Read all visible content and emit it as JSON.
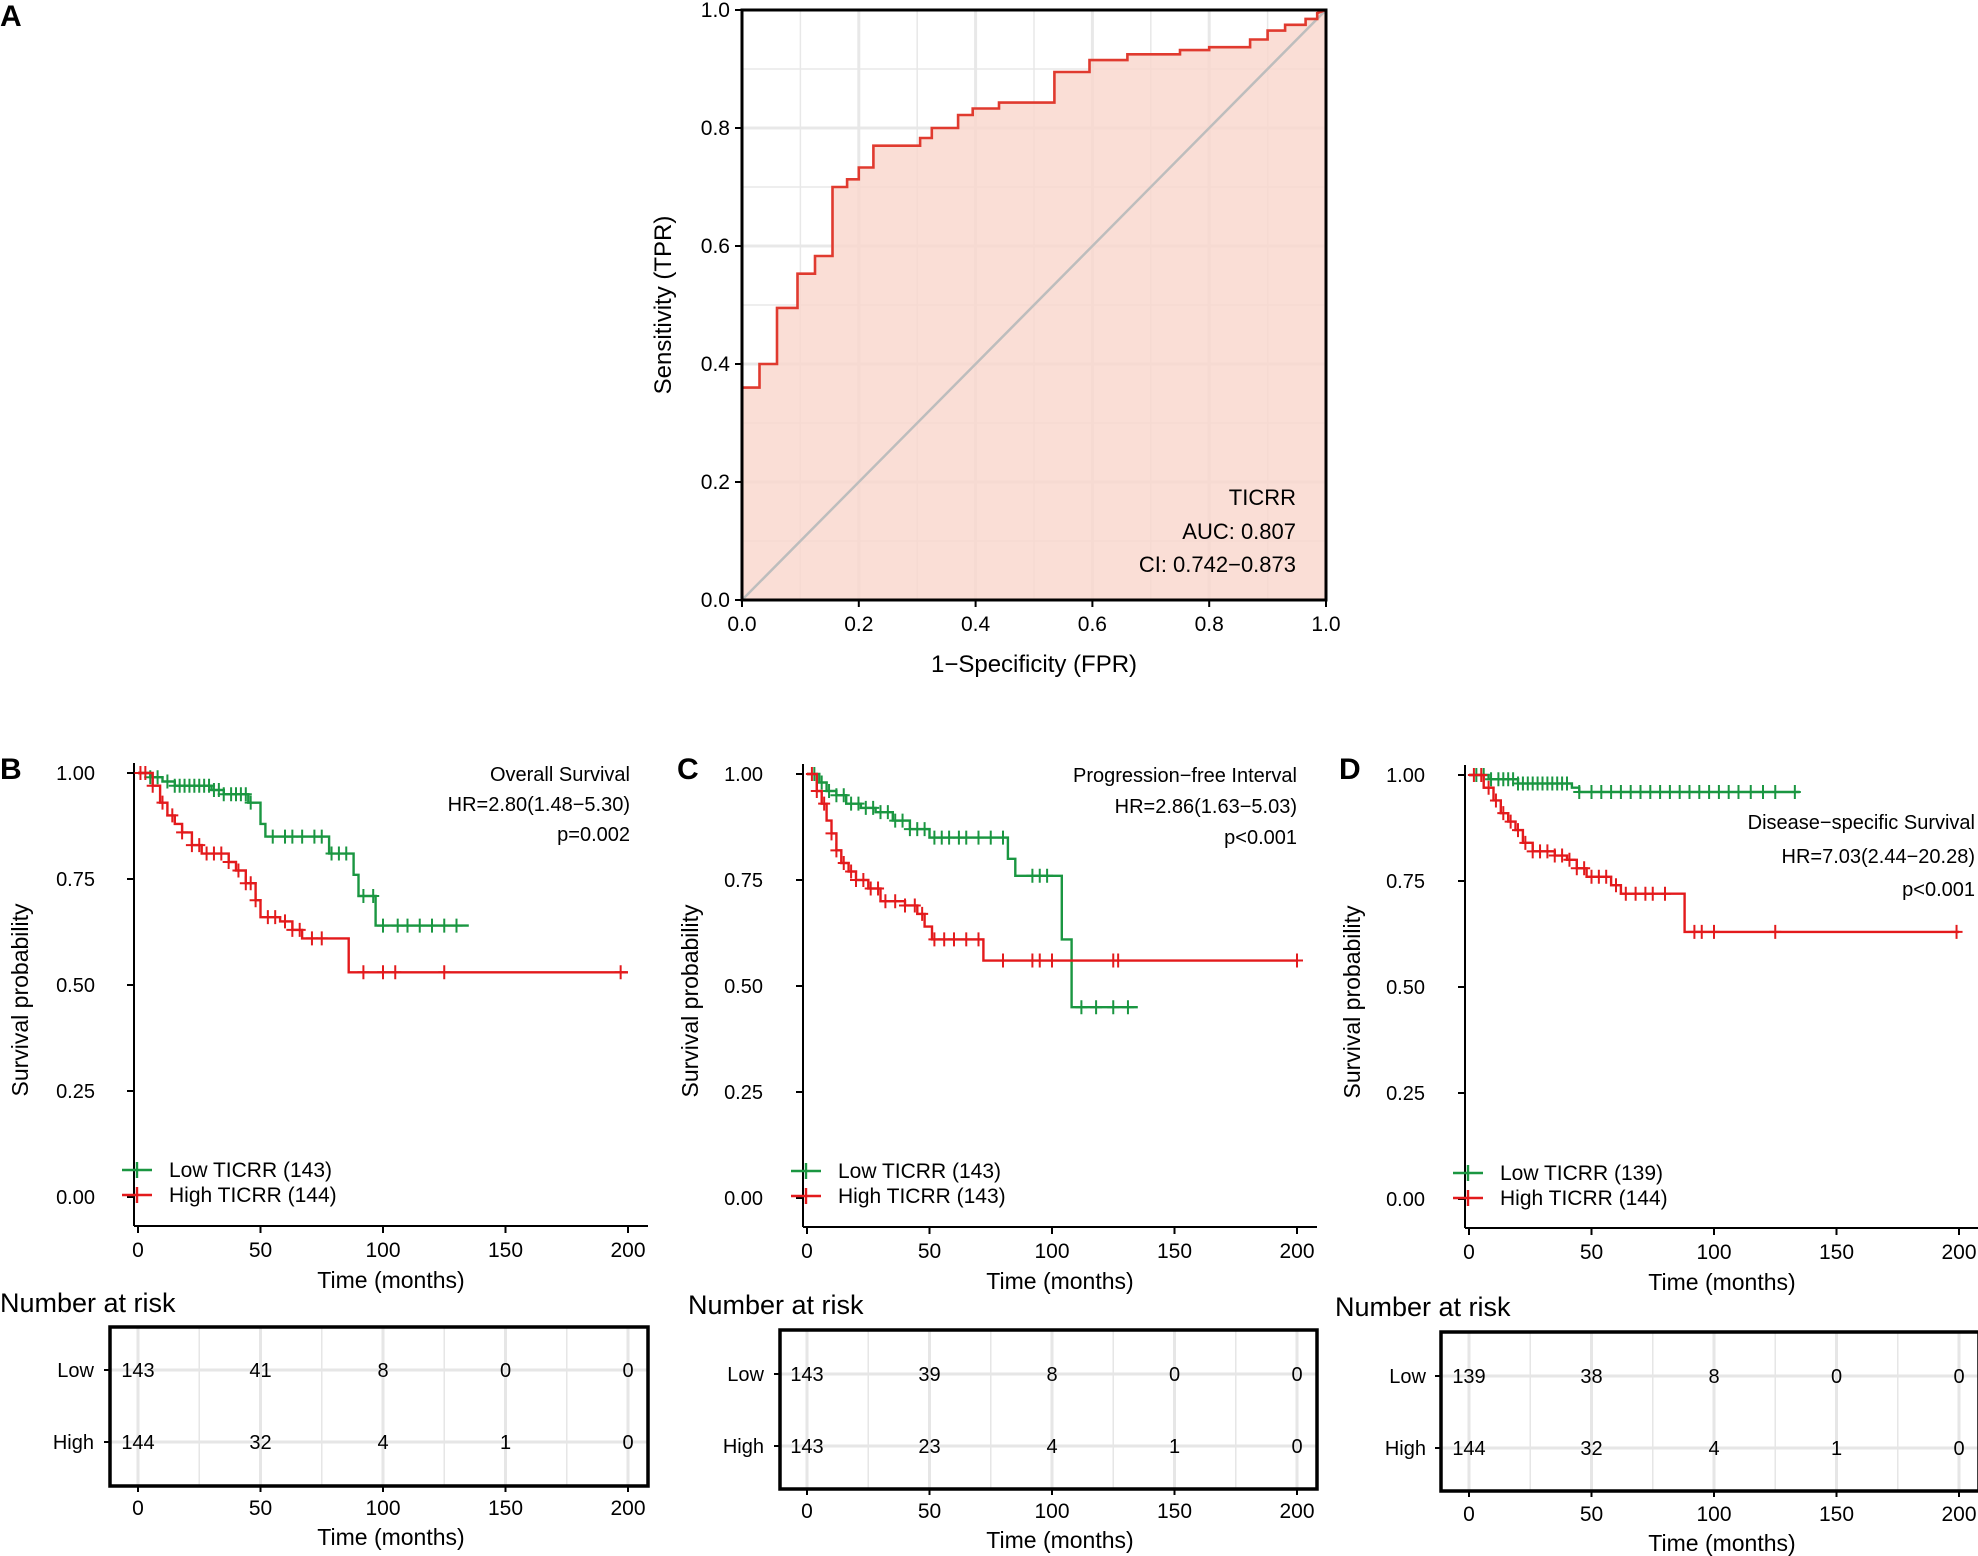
{
  "chart_data": [
    {
      "panel": "A",
      "type": "line",
      "subtype": "roc",
      "xlabel": "1−Specificity (FPR)",
      "ylabel": "Sensitivity (TPR)",
      "xlim": [
        0,
        1
      ],
      "ylim": [
        0,
        1
      ],
      "xticks": [
        "0.0",
        "0.2",
        "0.4",
        "0.6",
        "0.8",
        "1.0"
      ],
      "yticks": [
        "0.0",
        "0.2",
        "0.4",
        "0.6",
        "0.8",
        "1.0"
      ],
      "grid": true,
      "colors": {
        "curve": "#e03a2f",
        "fill": "#f9d6cc",
        "diagonal": "#bdbdbd",
        "grid": "#e8e8e8"
      },
      "annotations": [
        "TICRR",
        "AUC: 0.807",
        "CI: 0.742−0.873"
      ],
      "roc": [
        [
          0,
          0
        ],
        [
          0,
          0.36
        ],
        [
          0.03,
          0.36
        ],
        [
          0.03,
          0.4
        ],
        [
          0.06,
          0.4
        ],
        [
          0.06,
          0.495
        ],
        [
          0.095,
          0.495
        ],
        [
          0.095,
          0.553
        ],
        [
          0.125,
          0.553
        ],
        [
          0.125,
          0.583
        ],
        [
          0.155,
          0.583
        ],
        [
          0.155,
          0.7
        ],
        [
          0.18,
          0.7
        ],
        [
          0.18,
          0.713
        ],
        [
          0.2,
          0.713
        ],
        [
          0.2,
          0.733
        ],
        [
          0.225,
          0.733
        ],
        [
          0.225,
          0.77
        ],
        [
          0.305,
          0.77
        ],
        [
          0.305,
          0.783
        ],
        [
          0.325,
          0.783
        ],
        [
          0.325,
          0.8
        ],
        [
          0.37,
          0.8
        ],
        [
          0.37,
          0.822
        ],
        [
          0.395,
          0.822
        ],
        [
          0.395,
          0.833
        ],
        [
          0.44,
          0.833
        ],
        [
          0.44,
          0.843
        ],
        [
          0.535,
          0.843
        ],
        [
          0.535,
          0.895
        ],
        [
          0.595,
          0.895
        ],
        [
          0.595,
          0.915
        ],
        [
          0.66,
          0.915
        ],
        [
          0.66,
          0.925
        ],
        [
          0.75,
          0.925
        ],
        [
          0.75,
          0.932
        ],
        [
          0.8,
          0.932
        ],
        [
          0.8,
          0.937
        ],
        [
          0.87,
          0.937
        ],
        [
          0.87,
          0.95
        ],
        [
          0.9,
          0.95
        ],
        [
          0.9,
          0.965
        ],
        [
          0.93,
          0.965
        ],
        [
          0.93,
          0.975
        ],
        [
          0.965,
          0.975
        ],
        [
          0.965,
          0.985
        ],
        [
          0.985,
          0.985
        ],
        [
          0.985,
          0.995
        ],
        [
          1,
          1
        ]
      ]
    },
    {
      "panel": "B",
      "type": "line",
      "subtype": "kaplan-meier",
      "xlabel": "Time (months)",
      "ylabel": "Survival probability",
      "xlim": [
        0,
        200
      ],
      "ylim": [
        0,
        1
      ],
      "xticks": [
        "0",
        "50",
        "100",
        "150",
        "200"
      ],
      "yticks": [
        "0.00",
        "0.25",
        "0.50",
        "0.75",
        "1.00"
      ],
      "annotations": [
        "Overall Survival",
        "HR=2.80(1.48−5.30)",
        "p=0.002"
      ],
      "legend": "bottom-left",
      "series": [
        {
          "name": "Low TICRR (143)",
          "group": "low",
          "color": "#1a9641",
          "steps": [
            [
              0,
              1
            ],
            [
              5,
              0.99
            ],
            [
              10,
              0.98
            ],
            [
              15,
              0.97
            ],
            [
              30,
              0.96
            ],
            [
              35,
              0.95
            ],
            [
              45,
              0.93
            ],
            [
              50,
              0.88
            ],
            [
              52,
              0.85
            ],
            [
              78,
              0.81
            ],
            [
              88,
              0.76
            ],
            [
              90,
              0.71
            ],
            [
              97,
              0.64
            ],
            [
              135,
              0.64
            ]
          ],
          "censor": [
            5,
            8,
            12,
            15,
            17,
            19,
            21,
            23,
            25,
            27,
            29,
            31,
            33,
            35,
            38,
            40,
            42,
            44,
            46,
            55,
            60,
            63,
            67,
            72,
            75,
            79,
            82,
            85,
            92,
            96,
            100,
            106,
            110,
            115,
            120,
            125,
            130
          ]
        },
        {
          "name": "High TICRR (144)",
          "group": "high",
          "color": "#e31a1c",
          "steps": [
            [
              0,
              1
            ],
            [
              6,
              0.97
            ],
            [
              9,
              0.93
            ],
            [
              12,
              0.9
            ],
            [
              15,
              0.88
            ],
            [
              18,
              0.86
            ],
            [
              22,
              0.83
            ],
            [
              26,
              0.81
            ],
            [
              37,
              0.79
            ],
            [
              40,
              0.77
            ],
            [
              44,
              0.74
            ],
            [
              48,
              0.7
            ],
            [
              50,
              0.66
            ],
            [
              58,
              0.65
            ],
            [
              63,
              0.63
            ],
            [
              67,
              0.61
            ],
            [
              86,
              0.53
            ],
            [
              200,
              0.53
            ]
          ],
          "censor": [
            1,
            3,
            6,
            10,
            14,
            18,
            22,
            25,
            28,
            31,
            34,
            37,
            41,
            44,
            46,
            48,
            53,
            56,
            60,
            63,
            66,
            71,
            75,
            92,
            100,
            105,
            125,
            197
          ]
        }
      ],
      "risk_table": {
        "title": "Number at risk",
        "xlabel": "Time (months)",
        "rows": [
          {
            "label": "Low",
            "group": "low",
            "values": [
              "143",
              "41",
              "8",
              "0",
              "0"
            ]
          },
          {
            "label": "High",
            "group": "high",
            "values": [
              "144",
              "32",
              "4",
              "1",
              "0"
            ]
          }
        ]
      }
    },
    {
      "panel": "C",
      "type": "line",
      "subtype": "kaplan-meier",
      "xlabel": "Time (months)",
      "ylabel": "Survival probability",
      "xlim": [
        0,
        200
      ],
      "ylim": [
        0,
        1
      ],
      "xticks": [
        "0",
        "50",
        "100",
        "150",
        "200"
      ],
      "yticks": [
        "0.00",
        "0.25",
        "0.50",
        "0.75",
        "1.00"
      ],
      "annotations": [
        "Progression−free Interval",
        "HR=2.86(1.63−5.03)",
        "p<0.001"
      ],
      "legend": "bottom-left",
      "series": [
        {
          "name": "Low TICRR (143)",
          "group": "low",
          "color": "#1a9641",
          "steps": [
            [
              0,
              1
            ],
            [
              5,
              0.98
            ],
            [
              8,
              0.96
            ],
            [
              12,
              0.95
            ],
            [
              16,
              0.93
            ],
            [
              22,
              0.92
            ],
            [
              28,
              0.91
            ],
            [
              35,
              0.89
            ],
            [
              42,
              0.87
            ],
            [
              50,
              0.85
            ],
            [
              82,
              0.8
            ],
            [
              85,
              0.76
            ],
            [
              104,
              0.61
            ],
            [
              108,
              0.45
            ],
            [
              135,
              0.45
            ]
          ],
          "censor": [
            3,
            6,
            9,
            12,
            15,
            18,
            21,
            24,
            27,
            30,
            33,
            36,
            39,
            42,
            45,
            48,
            52,
            55,
            58,
            62,
            65,
            70,
            75,
            80,
            92,
            95,
            98,
            112,
            118,
            125,
            131
          ]
        },
        {
          "name": "High TICRR (143)",
          "group": "high",
          "color": "#e31a1c",
          "steps": [
            [
              0,
              1
            ],
            [
              4,
              0.96
            ],
            [
              6,
              0.93
            ],
            [
              8,
              0.89
            ],
            [
              10,
              0.86
            ],
            [
              12,
              0.82
            ],
            [
              14,
              0.79
            ],
            [
              17,
              0.77
            ],
            [
              20,
              0.75
            ],
            [
              25,
              0.73
            ],
            [
              30,
              0.7
            ],
            [
              40,
              0.69
            ],
            [
              45,
              0.67
            ],
            [
              48,
              0.64
            ],
            [
              51,
              0.61
            ],
            [
              72,
              0.56
            ],
            [
              200,
              0.56
            ]
          ],
          "censor": [
            2,
            4,
            7,
            10,
            12,
            15,
            18,
            20,
            23,
            26,
            29,
            32,
            36,
            40,
            44,
            47,
            52,
            56,
            60,
            65,
            70,
            80,
            92,
            95,
            100,
            125,
            127,
            200
          ]
        }
      ],
      "risk_table": {
        "title": "Number at risk",
        "xlabel": "Time (months)",
        "rows": [
          {
            "label": "Low",
            "group": "low",
            "values": [
              "143",
              "39",
              "8",
              "0",
              "0"
            ]
          },
          {
            "label": "High",
            "group": "high",
            "values": [
              "143",
              "23",
              "4",
              "1",
              "0"
            ]
          }
        ]
      }
    },
    {
      "panel": "D",
      "type": "line",
      "subtype": "kaplan-meier",
      "xlabel": "Time (months)",
      "ylabel": "Survival probability",
      "xlim": [
        0,
        200
      ],
      "ylim": [
        0,
        1
      ],
      "xticks": [
        "0",
        "50",
        "100",
        "150",
        "200"
      ],
      "yticks": [
        "0.00",
        "0.25",
        "0.50",
        "0.75",
        "1.00"
      ],
      "annotations": [
        "Disease−specific Survival",
        "HR=7.03(2.44−20.28)",
        "p<0.001"
      ],
      "legend": "bottom-left",
      "series": [
        {
          "name": "Low TICRR (139)",
          "group": "low",
          "color": "#1a9641",
          "steps": [
            [
              0,
              1
            ],
            [
              8,
              0.99
            ],
            [
              20,
              0.98
            ],
            [
              42,
              0.97
            ],
            [
              45,
              0.96
            ],
            [
              135,
              0.96
            ]
          ],
          "censor": [
            3,
            6,
            9,
            12,
            14,
            16,
            18,
            20,
            22,
            24,
            26,
            28,
            30,
            32,
            34,
            36,
            38,
            40,
            45,
            50,
            54,
            58,
            62,
            66,
            70,
            74,
            78,
            82,
            86,
            90,
            94,
            98,
            102,
            106,
            110,
            115,
            120,
            125,
            133
          ]
        },
        {
          "name": "High TICRR (144)",
          "group": "high",
          "color": "#e31a1c",
          "steps": [
            [
              0,
              1
            ],
            [
              6,
              0.97
            ],
            [
              10,
              0.94
            ],
            [
              13,
              0.91
            ],
            [
              16,
              0.89
            ],
            [
              19,
              0.87
            ],
            [
              22,
              0.84
            ],
            [
              26,
              0.82
            ],
            [
              35,
              0.81
            ],
            [
              40,
              0.8
            ],
            [
              44,
              0.78
            ],
            [
              48,
              0.76
            ],
            [
              58,
              0.74
            ],
            [
              62,
              0.72
            ],
            [
              88,
              0.63
            ],
            [
              200,
              0.63
            ]
          ],
          "censor": [
            2,
            5,
            8,
            11,
            14,
            17,
            20,
            23,
            26,
            29,
            32,
            35,
            38,
            41,
            44,
            47,
            50,
            53,
            56,
            60,
            64,
            68,
            72,
            75,
            80,
            92,
            95,
            100,
            125,
            199
          ]
        }
      ],
      "risk_table": {
        "title": "Number at risk",
        "xlabel": "Time (months)",
        "rows": [
          {
            "label": "Low",
            "group": "low",
            "values": [
              "139",
              "38",
              "8",
              "0",
              "0"
            ]
          },
          {
            "label": "High",
            "group": "high",
            "values": [
              "144",
              "32",
              "4",
              "1",
              "0"
            ]
          }
        ]
      }
    }
  ]
}
